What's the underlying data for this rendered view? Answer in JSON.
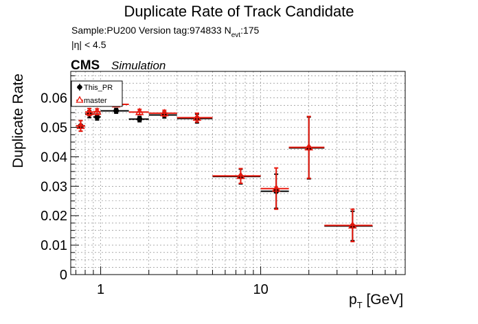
{
  "chart_data": {
    "type": "scatter",
    "title": "Duplicate Rate of Track Candidate",
    "info_line": "Sample:PU200   Version tag:974833  N",
    "info_sub": "evt",
    "info_tail": ":175",
    "eta_cut": "|η| < 4.5",
    "cms_label": "CMS",
    "sim_label": "Simulation",
    "ylabel": "Duplicate Rate",
    "xlabel_main": "p",
    "xlabel_sub": "T",
    "xlabel_unit": " [GeV]",
    "x_scale": "log",
    "xlim": [
      0.65,
      80
    ],
    "ylim": [
      0,
      0.069
    ],
    "grid": true,
    "legend_position": "top-left",
    "x_ticks": [
      {
        "v": 1,
        "label": "1"
      },
      {
        "v": 10,
        "label": "10"
      }
    ],
    "y_ticks": [
      {
        "v": 0,
        "label": "0"
      },
      {
        "v": 0.01,
        "label": "0.01"
      },
      {
        "v": 0.02,
        "label": "0.02"
      },
      {
        "v": 0.03,
        "label": "0.03"
      },
      {
        "v": 0.04,
        "label": "0.04"
      },
      {
        "v": 0.05,
        "label": "0.05"
      },
      {
        "v": 0.06,
        "label": "0.06"
      }
    ],
    "series": [
      {
        "name": "This_PR",
        "color": "#000000",
        "marker": "filled-circle",
        "points": [
          {
            "x": 0.75,
            "xlo": 0.7,
            "xhi": 0.8,
            "y": 0.0505,
            "err": 0.0018
          },
          {
            "x": 0.85,
            "xlo": 0.8,
            "xhi": 0.9,
            "y": 0.0545,
            "err": 0.0012
          },
          {
            "x": 0.95,
            "xlo": 0.9,
            "xhi": 1.0,
            "y": 0.0535,
            "err": 0.001
          },
          {
            "x": 1.25,
            "xlo": 1.0,
            "xhi": 1.5,
            "y": 0.0556,
            "err": 0.0008
          },
          {
            "x": 1.75,
            "xlo": 1.5,
            "xhi": 2.0,
            "y": 0.0528,
            "err": 0.0009
          },
          {
            "x": 2.5,
            "xlo": 2.0,
            "xhi": 3.0,
            "y": 0.0542,
            "err": 0.001
          },
          {
            "x": 4.0,
            "xlo": 3.0,
            "xhi": 5.0,
            "y": 0.053,
            "err": 0.0015
          },
          {
            "x": 7.5,
            "xlo": 5.0,
            "xhi": 10.0,
            "y": 0.0333,
            "err": 0.0025
          },
          {
            "x": 12.5,
            "xlo": 10.0,
            "xhi": 15.0,
            "y": 0.0283,
            "err": 0.0058
          },
          {
            "x": 20.0,
            "xlo": 15.0,
            "xhi": 25.0,
            "y": 0.043,
            "err": 0.0105
          },
          {
            "x": 37.5,
            "xlo": 25.0,
            "xhi": 50.0,
            "y": 0.0165,
            "err": 0.005
          }
        ]
      },
      {
        "name": "master",
        "color": "#e8190e",
        "marker": "open-triangle",
        "points": [
          {
            "x": 0.75,
            "xlo": 0.7,
            "xhi": 0.8,
            "y": 0.0505,
            "err": 0.0018
          },
          {
            "x": 0.85,
            "xlo": 0.8,
            "xhi": 0.9,
            "y": 0.0552,
            "err": 0.0012
          },
          {
            "x": 0.95,
            "xlo": 0.9,
            "xhi": 1.0,
            "y": 0.0553,
            "err": 0.001
          },
          {
            "x": 1.25,
            "xlo": 1.0,
            "xhi": 1.5,
            "y": 0.0578,
            "err": 0.0008
          },
          {
            "x": 1.75,
            "xlo": 1.5,
            "xhi": 2.0,
            "y": 0.0552,
            "err": 0.0009
          },
          {
            "x": 2.5,
            "xlo": 2.0,
            "xhi": 3.0,
            "y": 0.0548,
            "err": 0.001
          },
          {
            "x": 4.0,
            "xlo": 3.0,
            "xhi": 5.0,
            "y": 0.0533,
            "err": 0.0015
          },
          {
            "x": 7.5,
            "xlo": 5.0,
            "xhi": 10.0,
            "y": 0.0335,
            "err": 0.0025
          },
          {
            "x": 12.5,
            "xlo": 10.0,
            "xhi": 15.0,
            "y": 0.0292,
            "err": 0.007
          },
          {
            "x": 20.0,
            "xlo": 15.0,
            "xhi": 25.0,
            "y": 0.0432,
            "err": 0.0105
          },
          {
            "x": 37.5,
            "xlo": 25.0,
            "xhi": 50.0,
            "y": 0.0167,
            "err": 0.0055
          }
        ]
      }
    ]
  }
}
